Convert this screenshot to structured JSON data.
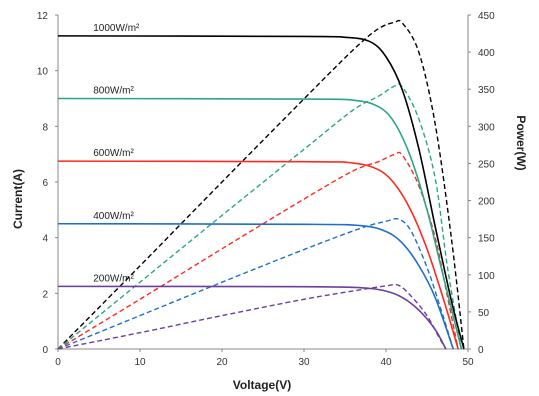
{
  "chart_data": {
    "type": "line",
    "xlabel": "Voltage(V)",
    "ylabel_left": "Current(A)",
    "ylabel_right": "Power(W)",
    "xlim": [
      0,
      50
    ],
    "ylim_left": [
      0,
      12
    ],
    "ylim_right": [
      0,
      450
    ],
    "x_ticks": [
      0,
      10,
      20,
      30,
      40,
      50
    ],
    "y_left_ticks": [
      0,
      2,
      4,
      6,
      8,
      10,
      12
    ],
    "y_right_ticks": [
      0,
      50,
      100,
      150,
      200,
      250,
      300,
      350,
      400,
      450
    ],
    "grid": false,
    "current_curves": [
      {
        "name": "1000W/m²",
        "color": "#000000",
        "isc": 11.25,
        "voc": 49.5,
        "points": [
          [
            0,
            11.25
          ],
          [
            30,
            11.23
          ],
          [
            35,
            11.2
          ],
          [
            38,
            11.05
          ],
          [
            40,
            10.5
          ],
          [
            42,
            9.3
          ],
          [
            44,
            7.2
          ],
          [
            46,
            4.4
          ],
          [
            48,
            1.7
          ],
          [
            49.5,
            0
          ]
        ]
      },
      {
        "name": "800W/m²",
        "color": "#2aa68a",
        "isc": 9.0,
        "voc": 49.2,
        "points": [
          [
            0,
            9.0
          ],
          [
            30,
            8.98
          ],
          [
            36,
            8.94
          ],
          [
            39,
            8.72
          ],
          [
            41,
            8.15
          ],
          [
            43,
            6.9
          ],
          [
            45,
            5.0
          ],
          [
            47,
            2.6
          ],
          [
            49.2,
            0
          ]
        ]
      },
      {
        "name": "600W/m²",
        "color": "#ff2a1f",
        "isc": 6.75,
        "voc": 48.8,
        "points": [
          [
            0,
            6.75
          ],
          [
            30,
            6.73
          ],
          [
            36,
            6.68
          ],
          [
            39,
            6.45
          ],
          [
            41,
            5.95
          ],
          [
            43,
            5.0
          ],
          [
            45,
            3.6
          ],
          [
            47,
            1.8
          ],
          [
            48.8,
            0
          ]
        ]
      },
      {
        "name": "400W/m²",
        "color": "#1f6fc9",
        "isc": 4.5,
        "voc": 48.2,
        "points": [
          [
            0,
            4.5
          ],
          [
            30,
            4.48
          ],
          [
            37,
            4.43
          ],
          [
            40,
            4.22
          ],
          [
            42,
            3.8
          ],
          [
            44,
            3.0
          ],
          [
            46,
            1.85
          ],
          [
            48.2,
            0
          ]
        ]
      },
      {
        "name": "200W/m²",
        "color": "#6b3fa0",
        "isc": 2.25,
        "voc": 47.3,
        "points": [
          [
            0,
            2.25
          ],
          [
            30,
            2.24
          ],
          [
            37,
            2.2
          ],
          [
            40,
            2.08
          ],
          [
            42,
            1.85
          ],
          [
            44,
            1.4
          ],
          [
            46,
            0.7
          ],
          [
            47.3,
            0
          ]
        ]
      }
    ],
    "power_curves": [
      {
        "color": "#000000",
        "peak_w": 440,
        "points": [
          [
            0,
            0
          ],
          [
            10,
            112
          ],
          [
            20,
            225
          ],
          [
            30,
            337
          ],
          [
            36,
            403
          ],
          [
            39,
            431
          ],
          [
            41,
            440
          ],
          [
            42,
            439
          ],
          [
            44,
            400
          ],
          [
            46,
            303
          ],
          [
            48,
            147
          ],
          [
            49.5,
            0
          ]
        ]
      },
      {
        "color": "#2aa68a",
        "peak_w": 354,
        "points": [
          [
            0,
            0
          ],
          [
            10,
            90
          ],
          [
            20,
            180
          ],
          [
            30,
            269
          ],
          [
            36,
            322
          ],
          [
            39,
            340
          ],
          [
            41,
            354
          ],
          [
            42,
            353
          ],
          [
            44,
            310
          ],
          [
            46,
            230
          ],
          [
            47.5,
            110
          ],
          [
            49.2,
            0
          ]
        ]
      },
      {
        "color": "#ff2a1f",
        "peak_w": 262,
        "points": [
          [
            0,
            0
          ],
          [
            10,
            67
          ],
          [
            20,
            135
          ],
          [
            30,
            202
          ],
          [
            36,
            240
          ],
          [
            39,
            252
          ],
          [
            41,
            262
          ],
          [
            42,
            261
          ],
          [
            44,
            220
          ],
          [
            46,
            150
          ],
          [
            47.5,
            70
          ],
          [
            48.8,
            0
          ]
        ]
      },
      {
        "color": "#1f6fc9",
        "peak_w": 175,
        "points": [
          [
            0,
            0
          ],
          [
            10,
            45
          ],
          [
            20,
            90
          ],
          [
            30,
            134
          ],
          [
            37,
            163
          ],
          [
            40,
            172
          ],
          [
            41.5,
            175
          ],
          [
            43,
            160
          ],
          [
            45,
            110
          ],
          [
            46.8,
            50
          ],
          [
            48.2,
            0
          ]
        ]
      },
      {
        "color": "#6b3fa0",
        "peak_w": 86,
        "points": [
          [
            0,
            0
          ],
          [
            10,
            22
          ],
          [
            20,
            45
          ],
          [
            30,
            67
          ],
          [
            37,
            80
          ],
          [
            40,
            85
          ],
          [
            41.5,
            86
          ],
          [
            43,
            72
          ],
          [
            45,
            45
          ],
          [
            46.5,
            15
          ],
          [
            47.3,
            0
          ]
        ]
      }
    ]
  }
}
